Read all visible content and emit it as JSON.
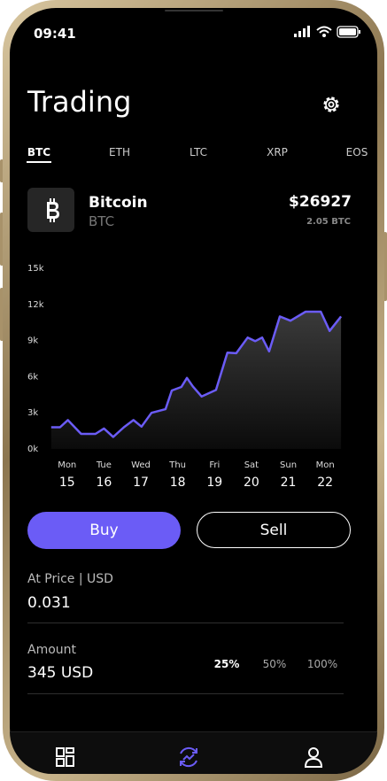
{
  "status": {
    "time": "09:41"
  },
  "header": {
    "title": "Trading"
  },
  "tabs": {
    "items": [
      "BTC",
      "ETH",
      "LTC",
      "XRP",
      "EOS"
    ],
    "active": 0
  },
  "coin": {
    "name": "Bitcoin",
    "symbol": "BTC",
    "price": "$26927",
    "holding": "2.05 BTC"
  },
  "chart_data": {
    "type": "line",
    "color": "#6b5cf6",
    "x": [
      14.57,
      14.81,
      15.02,
      15.38,
      15.77,
      16.0,
      16.25,
      16.54,
      16.8,
      17.02,
      17.29,
      17.67,
      17.84,
      18.1,
      18.25,
      18.41,
      18.65,
      19.04,
      19.35,
      19.59,
      19.9,
      20.1,
      20.29,
      20.48,
      20.77,
      21.06,
      21.47,
      21.88,
      22.12,
      22.43
    ],
    "values": [
      1800,
      1800,
      2400,
      1250,
      1250,
      1700,
      1000,
      1800,
      2400,
      1850,
      3000,
      3300,
      4850,
      5150,
      5900,
      5200,
      4350,
      4900,
      8000,
      7950,
      9250,
      8950,
      9250,
      8100,
      11000,
      10650,
      11400,
      11400,
      9800,
      11000
    ],
    "xlim": [
      14.55,
      22.5
    ],
    "xticks": [
      15,
      16,
      17,
      18,
      19,
      20,
      21,
      22
    ],
    "weekdays": [
      "Mon",
      "Tue",
      "Wed",
      "Thu",
      "Fri",
      "Sat",
      "Sun",
      "Mon"
    ],
    "ylim": [
      0,
      15000
    ],
    "yticks": [
      {
        "value": 0,
        "label": "0k"
      },
      {
        "value": 3000,
        "label": "3k"
      },
      {
        "value": 6000,
        "label": "6k"
      },
      {
        "value": 9000,
        "label": "9k"
      },
      {
        "value": 12000,
        "label": "12k"
      },
      {
        "value": 15000,
        "label": "15k"
      }
    ],
    "grid": false
  },
  "actions": {
    "buy": "Buy",
    "sell": "Sell"
  },
  "form": {
    "price_label": "At Price | USD",
    "price": "0.031",
    "amount_label": "Amount",
    "amount": "345 USD",
    "percentages": [
      "25%",
      "50%",
      "100%"
    ],
    "active_percentage": 0
  }
}
